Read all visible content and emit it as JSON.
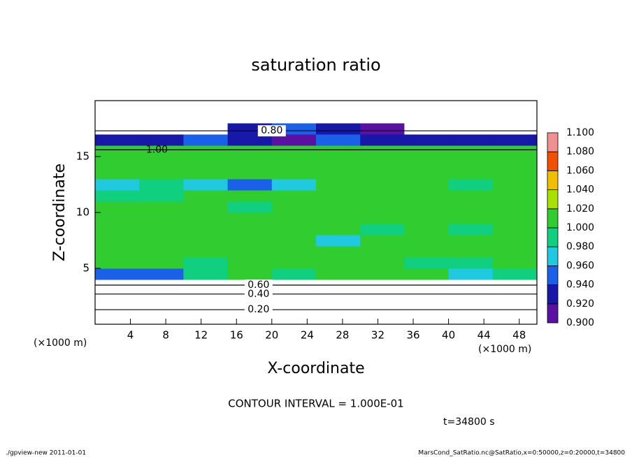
{
  "chart_data": {
    "type": "contour",
    "title": "saturation ratio",
    "xlabel": "X-coordinate",
    "ylabel": "Z-coordinate",
    "x_unit": "(×1000 m)",
    "y_unit": "(×1000 m)",
    "xlim": [
      0,
      50
    ],
    "ylim": [
      0,
      20
    ],
    "xticks": [
      4,
      8,
      12,
      16,
      20,
      24,
      28,
      32,
      36,
      40,
      44,
      48
    ],
    "yticks": [
      5,
      10,
      15
    ],
    "x": [
      2.5,
      7.5,
      12.5,
      17.5,
      22.5,
      27.5,
      32.5,
      37.5,
      42.5,
      47.5
    ],
    "z": [
      0.5,
      1.5,
      2.5,
      3.5,
      4.5,
      5.5,
      6.5,
      7.5,
      8.5,
      9.5,
      10.5,
      11.5,
      12.5,
      13.5,
      14.5,
      15.5,
      16.5,
      17.5,
      18.5,
      19.5
    ],
    "values": [
      [
        0.15,
        0.15,
        0.15,
        0.15,
        0.15,
        0.15,
        0.15,
        0.15,
        0.15,
        0.15
      ],
      [
        0.25,
        0.25,
        0.25,
        0.25,
        0.25,
        0.25,
        0.25,
        0.25,
        0.25,
        0.25
      ],
      [
        0.45,
        0.45,
        0.45,
        0.45,
        0.45,
        0.45,
        0.45,
        0.45,
        0.45,
        0.45
      ],
      [
        0.7,
        0.7,
        0.7,
        0.7,
        0.7,
        0.7,
        0.7,
        0.7,
        0.7,
        0.7
      ],
      [
        0.95,
        0.94,
        0.99,
        1.0,
        0.99,
        1.0,
        1.0,
        1.0,
        0.97,
        0.98
      ],
      [
        1.0,
        1.0,
        0.99,
        1.0,
        1.0,
        1.0,
        1.0,
        0.99,
        0.98,
        1.0
      ],
      [
        1.0,
        1.0,
        1.0,
        1.0,
        1.0,
        1.0,
        1.0,
        1.0,
        1.0,
        1.0
      ],
      [
        1.0,
        1.0,
        1.0,
        1.0,
        1.0,
        0.97,
        1.0,
        1.0,
        1.0,
        1.0
      ],
      [
        1.0,
        1.0,
        1.0,
        1.0,
        1.0,
        1.0,
        0.99,
        1.0,
        0.99,
        1.0
      ],
      [
        1.0,
        1.0,
        1.0,
        1.0,
        1.0,
        1.0,
        1.0,
        1.0,
        1.0,
        1.0
      ],
      [
        1.0,
        1.0,
        1.0,
        0.99,
        1.0,
        1.0,
        1.0,
        1.0,
        1.0,
        1.0
      ],
      [
        0.99,
        0.98,
        1.0,
        1.0,
        1.0,
        1.0,
        1.0,
        1.0,
        1.0,
        1.0
      ],
      [
        0.97,
        0.98,
        0.96,
        0.95,
        0.97,
        1.0,
        1.0,
        1.0,
        0.99,
        1.0
      ],
      [
        1.0,
        1.0,
        1.0,
        1.0,
        1.0,
        1.0,
        1.0,
        1.0,
        1.0,
        1.0
      ],
      [
        1.0,
        1.0,
        1.0,
        1.0,
        1.0,
        1.0,
        1.0,
        1.0,
        1.0,
        1.0
      ],
      [
        1.0,
        1.0,
        1.0,
        1.0,
        1.0,
        1.0,
        1.0,
        1.0,
        1.0,
        1.0
      ],
      [
        0.93,
        0.92,
        0.94,
        0.93,
        0.91,
        0.94,
        0.93,
        0.92,
        0.93,
        0.92
      ],
      [
        0.85,
        0.86,
        0.86,
        0.92,
        0.95,
        0.93,
        0.9,
        0.88,
        0.87,
        0.86
      ],
      [
        0.8,
        0.8,
        0.8,
        0.8,
        0.8,
        0.8,
        0.8,
        0.8,
        0.8,
        0.8
      ],
      [
        0.75,
        0.75,
        0.75,
        0.75,
        0.75,
        0.75,
        0.75,
        0.75,
        0.75,
        0.75
      ]
    ],
    "levels": [
      {
        "value": 0.9,
        "label": "0.900"
      },
      {
        "value": 0.92,
        "label": "0.920"
      },
      {
        "value": 0.94,
        "label": "0.940"
      },
      {
        "value": 0.96,
        "label": "0.960"
      },
      {
        "value": 0.98,
        "label": "0.980"
      },
      {
        "value": 1.0,
        "label": "1.000"
      },
      {
        "value": 1.02,
        "label": "1.020"
      },
      {
        "value": 1.04,
        "label": "1.040"
      },
      {
        "value": 1.06,
        "label": "1.060"
      },
      {
        "value": 1.08,
        "label": "1.080"
      },
      {
        "value": 1.1,
        "label": "1.100"
      }
    ],
    "colors": [
      "#5a10a0",
      "#1818a8",
      "#1a60e8",
      "#20c8e0",
      "#10d080",
      "#30cc30",
      "#a8e000",
      "#f0c000",
      "#f05000",
      "#f09090"
    ],
    "contour_labels": [
      {
        "value": 0.8,
        "label": "0.80"
      },
      {
        "value": 1.0,
        "label": "1.00"
      },
      {
        "value": 0.6,
        "label": "0.60"
      },
      {
        "value": 0.4,
        "label": "0.40"
      },
      {
        "value": 0.2,
        "label": "0.20"
      }
    ],
    "contour_interval": "CONTOUR INTERVAL = 1.000E-01",
    "time_label": "t=34800 s",
    "footer_left": "./gpview-new   2011-01-01",
    "footer_right": "MarsCond_SatRatio.nc@SatRatio,x=0:50000,z=0:20000,t=34800"
  }
}
